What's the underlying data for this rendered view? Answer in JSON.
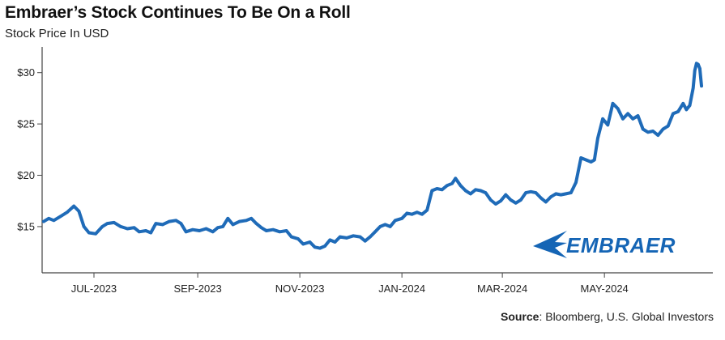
{
  "title": "Embraer’s Stock Continues To Be On a Roll",
  "subtitle": "Stock Price In USD",
  "source_label": "Source",
  "source_text": ": Bloomberg, U.S. Global Investors",
  "logo_text": "EMBRAER",
  "colors": {
    "line": "#1f6bb8",
    "axis": "#444444",
    "logo": "#1565b5"
  },
  "chart_data": {
    "type": "line",
    "title": "Embraer’s Stock Continues To Be On a Roll",
    "subtitle": "Stock Price In USD",
    "xlabel": "",
    "ylabel": "",
    "ylim": [
      10.5,
      32.5
    ],
    "y_ticks": [
      {
        "value": 15,
        "label": "$15"
      },
      {
        "value": 20,
        "label": "$20"
      },
      {
        "value": 25,
        "label": "$25"
      },
      {
        "value": 30,
        "label": "$30"
      }
    ],
    "x_range": [
      "2023-06-01",
      "2024-06-28"
    ],
    "x_ticks": [
      {
        "date": "2023-07-01",
        "label": "JUL-2023"
      },
      {
        "date": "2023-09-01",
        "label": "SEP-2023"
      },
      {
        "date": "2023-11-01",
        "label": "NOV-2023"
      },
      {
        "date": "2024-01-01",
        "label": "JAN-2024"
      },
      {
        "date": "2024-03-01",
        "label": "MAR-2024"
      },
      {
        "date": "2024-05-01",
        "label": "MAY-2024"
      }
    ],
    "grid": false,
    "series": [
      {
        "points": [
          [
            "2023-06-01",
            15.5
          ],
          [
            "2023-06-04",
            15.8
          ],
          [
            "2023-06-07",
            15.6
          ],
          [
            "2023-06-11",
            16.0
          ],
          [
            "2023-06-15",
            16.4
          ],
          [
            "2023-06-19",
            17.0
          ],
          [
            "2023-06-22",
            16.5
          ],
          [
            "2023-06-25",
            15.0
          ],
          [
            "2023-06-28",
            14.4
          ],
          [
            "2023-07-02",
            14.3
          ],
          [
            "2023-07-06",
            15.0
          ],
          [
            "2023-07-09",
            15.3
          ],
          [
            "2023-07-13",
            15.4
          ],
          [
            "2023-07-17",
            15.0
          ],
          [
            "2023-07-21",
            14.8
          ],
          [
            "2023-07-25",
            14.9
          ],
          [
            "2023-07-28",
            14.5
          ],
          [
            "2023-08-01",
            14.6
          ],
          [
            "2023-08-04",
            14.4
          ],
          [
            "2023-08-07",
            15.3
          ],
          [
            "2023-08-11",
            15.2
          ],
          [
            "2023-08-15",
            15.5
          ],
          [
            "2023-08-19",
            15.6
          ],
          [
            "2023-08-22",
            15.3
          ],
          [
            "2023-08-25",
            14.5
          ],
          [
            "2023-08-29",
            14.7
          ],
          [
            "2023-09-02",
            14.6
          ],
          [
            "2023-09-06",
            14.8
          ],
          [
            "2023-09-10",
            14.5
          ],
          [
            "2023-09-13",
            14.9
          ],
          [
            "2023-09-16",
            15.0
          ],
          [
            "2023-09-19",
            15.8
          ],
          [
            "2023-09-22",
            15.2
          ],
          [
            "2023-09-26",
            15.5
          ],
          [
            "2023-09-30",
            15.6
          ],
          [
            "2023-10-03",
            15.8
          ],
          [
            "2023-10-06",
            15.3
          ],
          [
            "2023-10-09",
            14.9
          ],
          [
            "2023-10-12",
            14.6
          ],
          [
            "2023-10-16",
            14.7
          ],
          [
            "2023-10-20",
            14.5
          ],
          [
            "2023-10-24",
            14.6
          ],
          [
            "2023-10-27",
            14.0
          ],
          [
            "2023-10-31",
            13.8
          ],
          [
            "2023-11-03",
            13.3
          ],
          [
            "2023-11-07",
            13.5
          ],
          [
            "2023-11-10",
            13.0
          ],
          [
            "2023-11-13",
            12.9
          ],
          [
            "2023-11-16",
            13.1
          ],
          [
            "2023-11-19",
            13.7
          ],
          [
            "2023-11-22",
            13.5
          ],
          [
            "2023-11-25",
            14.0
          ],
          [
            "2023-11-29",
            13.9
          ],
          [
            "2023-12-03",
            14.1
          ],
          [
            "2023-12-07",
            14.0
          ],
          [
            "2023-12-10",
            13.6
          ],
          [
            "2023-12-13",
            14.0
          ],
          [
            "2023-12-16",
            14.5
          ],
          [
            "2023-12-19",
            15.0
          ],
          [
            "2023-12-22",
            15.2
          ],
          [
            "2023-12-25",
            15.0
          ],
          [
            "2023-12-28",
            15.6
          ],
          [
            "2024-01-01",
            15.8
          ],
          [
            "2024-01-04",
            16.3
          ],
          [
            "2024-01-07",
            16.2
          ],
          [
            "2024-01-10",
            16.4
          ],
          [
            "2024-01-13",
            16.2
          ],
          [
            "2024-01-16",
            16.6
          ],
          [
            "2024-01-19",
            18.5
          ],
          [
            "2024-01-22",
            18.7
          ],
          [
            "2024-01-25",
            18.6
          ],
          [
            "2024-01-28",
            19.0
          ],
          [
            "2024-01-31",
            19.2
          ],
          [
            "2024-02-02",
            19.7
          ],
          [
            "2024-02-05",
            19.0
          ],
          [
            "2024-02-08",
            18.5
          ],
          [
            "2024-02-11",
            18.2
          ],
          [
            "2024-02-14",
            18.6
          ],
          [
            "2024-02-17",
            18.5
          ],
          [
            "2024-02-20",
            18.3
          ],
          [
            "2024-02-23",
            17.6
          ],
          [
            "2024-02-26",
            17.2
          ],
          [
            "2024-02-29",
            17.5
          ],
          [
            "2024-03-03",
            18.1
          ],
          [
            "2024-03-06",
            17.6
          ],
          [
            "2024-03-09",
            17.3
          ],
          [
            "2024-03-12",
            17.6
          ],
          [
            "2024-03-15",
            18.3
          ],
          [
            "2024-03-18",
            18.4
          ],
          [
            "2024-03-21",
            18.3
          ],
          [
            "2024-03-24",
            17.8
          ],
          [
            "2024-03-27",
            17.4
          ],
          [
            "2024-03-30",
            17.9
          ],
          [
            "2024-04-02",
            18.2
          ],
          [
            "2024-04-05",
            18.1
          ],
          [
            "2024-04-08",
            18.2
          ],
          [
            "2024-04-11",
            18.3
          ],
          [
            "2024-04-14",
            19.3
          ],
          [
            "2024-04-17",
            21.7
          ],
          [
            "2024-04-20",
            21.5
          ],
          [
            "2024-04-23",
            21.3
          ],
          [
            "2024-04-25",
            21.5
          ],
          [
            "2024-04-27",
            23.6
          ],
          [
            "2024-04-30",
            25.5
          ],
          [
            "2024-05-03",
            24.9
          ],
          [
            "2024-05-06",
            27.0
          ],
          [
            "2024-05-09",
            26.5
          ],
          [
            "2024-05-12",
            25.5
          ],
          [
            "2024-05-15",
            26.0
          ],
          [
            "2024-05-18",
            25.5
          ],
          [
            "2024-05-21",
            25.8
          ],
          [
            "2024-05-24",
            24.5
          ],
          [
            "2024-05-27",
            24.2
          ],
          [
            "2024-05-30",
            24.3
          ],
          [
            "2024-06-02",
            23.9
          ],
          [
            "2024-06-05",
            24.5
          ],
          [
            "2024-06-08",
            24.8
          ],
          [
            "2024-06-11",
            26.0
          ],
          [
            "2024-06-14",
            26.2
          ],
          [
            "2024-06-17",
            27.0
          ],
          [
            "2024-06-19",
            26.4
          ],
          [
            "2024-06-21",
            26.8
          ],
          [
            "2024-06-23",
            28.5
          ],
          [
            "2024-06-24",
            30.2
          ],
          [
            "2024-06-25",
            30.9
          ],
          [
            "2024-06-26",
            30.8
          ],
          [
            "2024-06-27",
            30.4
          ],
          [
            "2024-06-28",
            28.7
          ]
        ]
      }
    ]
  }
}
